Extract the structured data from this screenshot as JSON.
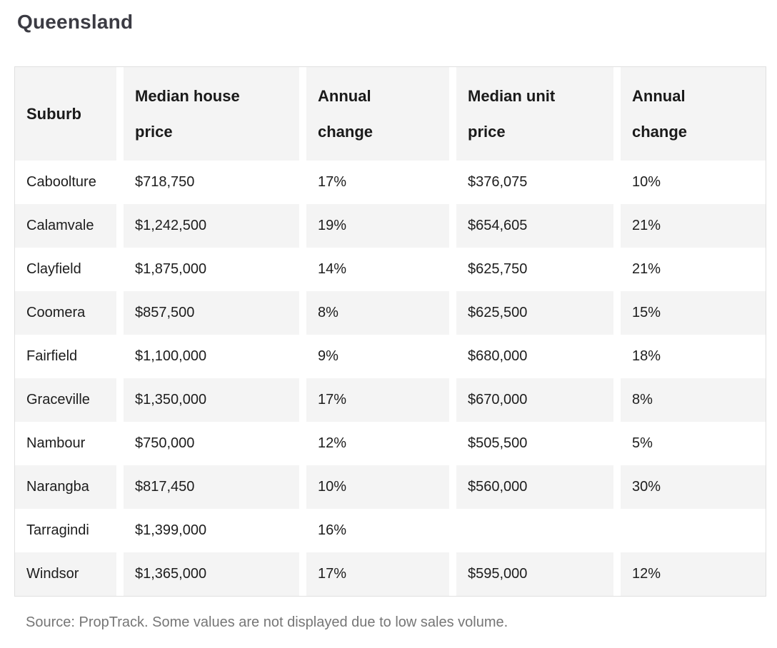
{
  "title": "Queensland",
  "table": {
    "columns": [
      "Suburb",
      "Median house\nprice",
      "Annual\nchange",
      "Median unit\nprice",
      "Annual\nchange"
    ],
    "rows": [
      [
        "Caboolture",
        "$718,750",
        "17%",
        "$376,075",
        "10%"
      ],
      [
        "Calamvale",
        "$1,242,500",
        "19%",
        "$654,605",
        "21%"
      ],
      [
        "Clayfield",
        "$1,875,000",
        "14%",
        "$625,750",
        "21%"
      ],
      [
        "Coomera",
        "$857,500",
        "8%",
        "$625,500",
        "15%"
      ],
      [
        "Fairfield",
        "$1,100,000",
        "9%",
        "$680,000",
        "18%"
      ],
      [
        "Graceville",
        "$1,350,000",
        "17%",
        "$670,000",
        "8%"
      ],
      [
        "Nambour",
        "$750,000",
        "12%",
        "$505,500",
        "5%"
      ],
      [
        "Narangba",
        "$817,450",
        "10%",
        "$560,000",
        "30%"
      ],
      [
        "Tarragindi",
        "$1,399,000",
        "16%",
        "",
        ""
      ],
      [
        "Windsor",
        "$1,365,000",
        "17%",
        "$595,000",
        "12%"
      ]
    ]
  },
  "source_note": "Source: PropTrack. Some values are not displayed due to low sales volume.",
  "colors": {
    "shade": "#f4f4f4",
    "title_text": "#3b3b43",
    "body_text": "#1d1d1d",
    "muted_text": "#767676",
    "table_border": "#e0e0e0"
  },
  "chart_data": {
    "type": "table",
    "title": "Queensland",
    "columns": [
      "Suburb",
      "Median house price",
      "Annual change",
      "Median unit price",
      "Annual change"
    ],
    "rows": [
      {
        "suburb": "Caboolture",
        "median_house_price": 718750,
        "house_annual_change_pct": 17,
        "median_unit_price": 376075,
        "unit_annual_change_pct": 10
      },
      {
        "suburb": "Calamvale",
        "median_house_price": 1242500,
        "house_annual_change_pct": 19,
        "median_unit_price": 654605,
        "unit_annual_change_pct": 21
      },
      {
        "suburb": "Clayfield",
        "median_house_price": 1875000,
        "house_annual_change_pct": 14,
        "median_unit_price": 625750,
        "unit_annual_change_pct": 21
      },
      {
        "suburb": "Coomera",
        "median_house_price": 857500,
        "house_annual_change_pct": 8,
        "median_unit_price": 625500,
        "unit_annual_change_pct": 15
      },
      {
        "suburb": "Fairfield",
        "median_house_price": 1100000,
        "house_annual_change_pct": 9,
        "median_unit_price": 680000,
        "unit_annual_change_pct": 18
      },
      {
        "suburb": "Graceville",
        "median_house_price": 1350000,
        "house_annual_change_pct": 17,
        "median_unit_price": 670000,
        "unit_annual_change_pct": 8
      },
      {
        "suburb": "Nambour",
        "median_house_price": 750000,
        "house_annual_change_pct": 12,
        "median_unit_price": 505500,
        "unit_annual_change_pct": 5
      },
      {
        "suburb": "Narangba",
        "median_house_price": 817450,
        "house_annual_change_pct": 10,
        "median_unit_price": 560000,
        "unit_annual_change_pct": 30
      },
      {
        "suburb": "Tarragindi",
        "median_house_price": 1399000,
        "house_annual_change_pct": 16,
        "median_unit_price": null,
        "unit_annual_change_pct": null
      },
      {
        "suburb": "Windsor",
        "median_house_price": 1365000,
        "house_annual_change_pct": 17,
        "median_unit_price": 595000,
        "unit_annual_change_pct": 12
      }
    ],
    "footnote": "Source: PropTrack. Some values are not displayed due to low sales volume.",
    "layout": {
      "shaded_header": true,
      "alternating_rows": true,
      "missing_values_blank": true
    }
  }
}
